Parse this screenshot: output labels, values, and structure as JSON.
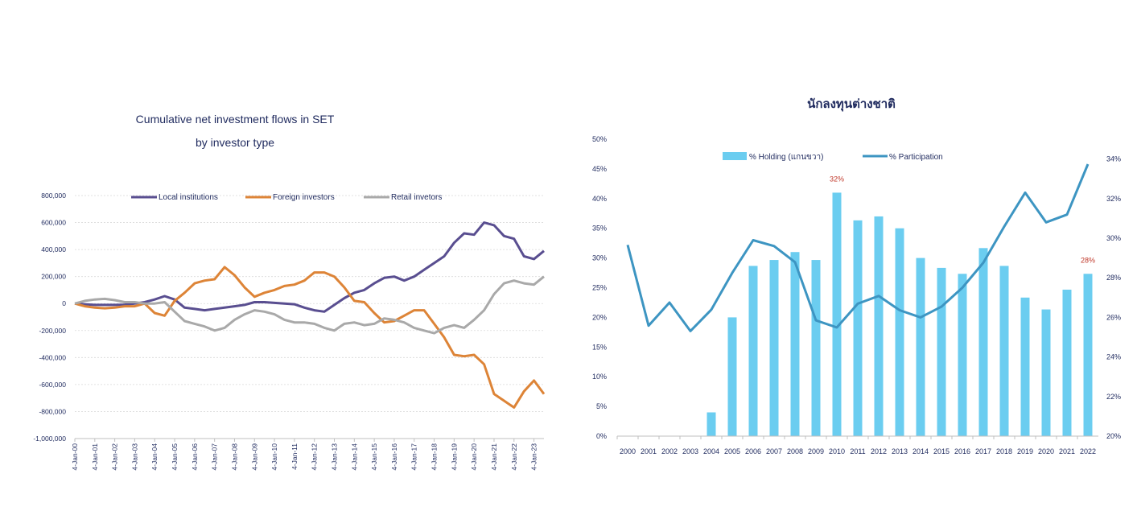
{
  "chart_data": [
    {
      "type": "line",
      "title": "Cumulative net investment flows in SET",
      "subtitle": "by investor type",
      "ylim": [
        -1000000,
        800000
      ],
      "y_ticks": [
        "800,000",
        "600,000",
        "400,000",
        "200,000",
        "0",
        "-200,000",
        "-400,000",
        "-600,000",
        "-800,000",
        "-1,000,000"
      ],
      "x_ticks": [
        "4-Jan-00",
        "4-Jan-01",
        "4-Jan-02",
        "4-Jan-03",
        "4-Jan-04",
        "4-Jan-05",
        "4-Jan-06",
        "4-Jan-07",
        "4-Jan-08",
        "4-Jan-09",
        "4-Jan-10",
        "4-Jan-11",
        "4-Jan-12",
        "4-Jan-13",
        "4-Jan-14",
        "4-Jan-15",
        "4-Jan-16",
        "4-Jan-17",
        "4-Jan-18",
        "4-Jan-19",
        "4-Jan-20",
        "4-Jan-21",
        "4-Jan-22",
        "4-Jan-23"
      ],
      "x": [
        2000,
        2000.5,
        2001,
        2001.5,
        2002,
        2002.5,
        2003,
        2003.5,
        2004,
        2004.5,
        2005,
        2005.5,
        2006,
        2006.5,
        2007,
        2007.5,
        2008,
        2008.5,
        2009,
        2009.5,
        2010,
        2010.5,
        2011,
        2011.5,
        2012,
        2012.5,
        2013,
        2013.5,
        2014,
        2014.5,
        2015,
        2015.5,
        2016,
        2016.5,
        2017,
        2017.5,
        2018,
        2018.5,
        2019,
        2019.5,
        2020,
        2020.5,
        2021,
        2021.5,
        2022,
        2022.5,
        2023,
        2023.5
      ],
      "grid": true,
      "legend_position": "top",
      "series": [
        {
          "name": "Local institutions",
          "color": "#594e90",
          "values": [
            0,
            -5000,
            -10000,
            -10000,
            -10000,
            -8000,
            0,
            10000,
            30000,
            55000,
            30000,
            -30000,
            -40000,
            -50000,
            -40000,
            -30000,
            -20000,
            -10000,
            10000,
            10000,
            5000,
            0,
            -5000,
            -30000,
            -50000,
            -60000,
            -10000,
            40000,
            80000,
            100000,
            150000,
            190000,
            200000,
            170000,
            200000,
            250000,
            300000,
            350000,
            450000,
            520000,
            510000,
            600000,
            580000,
            500000,
            480000,
            350000,
            330000,
            390000
          ]
        },
        {
          "name": "Foreign investors",
          "color": "#dd8437",
          "values": [
            0,
            -20000,
            -30000,
            -35000,
            -30000,
            -20000,
            -20000,
            0,
            -70000,
            -90000,
            20000,
            80000,
            150000,
            170000,
            180000,
            270000,
            210000,
            120000,
            50000,
            80000,
            100000,
            130000,
            140000,
            170000,
            230000,
            230000,
            200000,
            120000,
            20000,
            10000,
            -70000,
            -140000,
            -130000,
            -90000,
            -50000,
            -50000,
            -150000,
            -250000,
            -380000,
            -390000,
            -380000,
            -450000,
            -670000,
            -720000,
            -770000,
            -650000,
            -570000,
            -670000
          ]
        },
        {
          "name": "Retail invetors",
          "color": "#a9a9a9",
          "values": [
            0,
            20000,
            30000,
            35000,
            25000,
            10000,
            10000,
            0,
            0,
            10000,
            -60000,
            -130000,
            -150000,
            -170000,
            -200000,
            -180000,
            -120000,
            -80000,
            -50000,
            -60000,
            -80000,
            -120000,
            -140000,
            -140000,
            -150000,
            -180000,
            -200000,
            -150000,
            -140000,
            -160000,
            -150000,
            -110000,
            -120000,
            -140000,
            -180000,
            -200000,
            -220000,
            -180000,
            -160000,
            -180000,
            -120000,
            -50000,
            70000,
            150000,
            170000,
            150000,
            140000,
            200000
          ]
        }
      ]
    },
    {
      "type": "bar",
      "title": "นักลงทุนต่างชาติ",
      "categories": [
        "2000",
        "2001",
        "2002",
        "2003",
        "2004",
        "2005",
        "2006",
        "2007",
        "2008",
        "2009",
        "2010",
        "2011",
        "2012",
        "2013",
        "2014",
        "2015",
        "2016",
        "2017",
        "2018",
        "2019",
        "2020",
        "2021",
        "2022"
      ],
      "left_ylim": [
        0,
        50
      ],
      "left_ticks": [
        "0%",
        "5%",
        "10%",
        "15%",
        "20%",
        "25%",
        "30%",
        "35%",
        "40%",
        "45%",
        "50%"
      ],
      "right_ylim": [
        20,
        35
      ],
      "right_ticks": [
        "20%",
        "22%",
        "24%",
        "26%",
        "28%",
        "30%",
        "32%",
        "34%"
      ],
      "legend_position": "top",
      "annotations": [
        "32%",
        "28%"
      ],
      "annotation_color": "#c0392b",
      "series": [
        {
          "name": "% Holding (แกนขวา)",
          "type": "bar",
          "axis": "right",
          "color": "#6bcdf0",
          "values": [
            null,
            null,
            null,
            null,
            21.2,
            26.0,
            28.6,
            28.9,
            29.3,
            28.9,
            32.3,
            30.9,
            31.1,
            30.5,
            29.0,
            28.5,
            28.2,
            29.5,
            28.6,
            27.0,
            26.4,
            27.4,
            28.2
          ]
        },
        {
          "name": "% Participation",
          "type": "line",
          "axis": "left",
          "color": "#3d95c2",
          "values": [
            32.2,
            18.6,
            22.5,
            17.7,
            21.3,
            27.5,
            33.0,
            32.0,
            29.3,
            19.5,
            18.3,
            22.3,
            23.6,
            21.2,
            20.0,
            21.8,
            25.0,
            29.2,
            35.3,
            41.0,
            36.0,
            37.3,
            45.8
          ]
        }
      ]
    }
  ]
}
